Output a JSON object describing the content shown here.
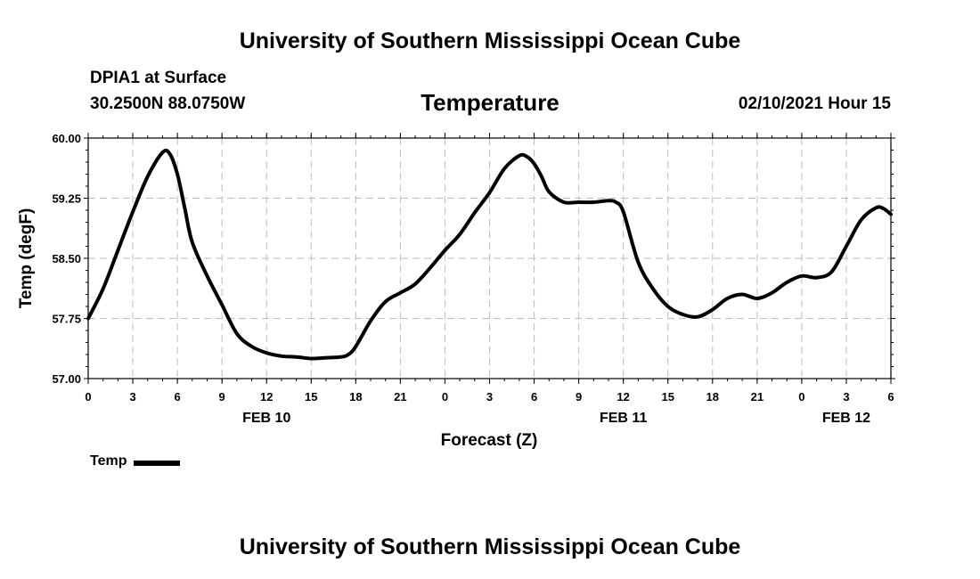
{
  "header": {
    "top_title": "University of Southern Mississippi Ocean Cube",
    "station": "DPIA1 at Surface",
    "coordinates": "30.2500N 88.0750W",
    "datetime": "02/10/2021 Hour 15"
  },
  "footer": {
    "bottom_title": "University of Southern Mississippi Ocean Cube"
  },
  "legend": {
    "label": "Temp",
    "color": "#000000"
  },
  "chart_data": {
    "type": "line",
    "title": "Temperature",
    "xlabel": "Forecast (Z)",
    "ylabel": "Temp (degF)",
    "ylim": [
      57.0,
      60.0
    ],
    "yticks": [
      "57.00",
      "57.75",
      "58.50",
      "59.25",
      "60.00"
    ],
    "xlim": [
      0,
      54
    ],
    "xtick_labels": [
      "0",
      "3",
      "6",
      "9",
      "12",
      "15",
      "18",
      "21",
      "0",
      "3",
      "6",
      "9",
      "12",
      "15",
      "18",
      "21",
      "0",
      "3",
      "6"
    ],
    "date_labels": [
      {
        "label": "FEB 10",
        "x": 12
      },
      {
        "label": "FEB 11",
        "x": 36
      },
      {
        "label": "FEB 12",
        "x": 51
      }
    ],
    "grid": true,
    "series": [
      {
        "name": "Temp",
        "color": "#000000",
        "x": [
          0,
          1,
          2,
          3,
          4,
          5,
          5.5,
          6,
          6.5,
          7,
          8,
          9,
          10,
          11,
          12,
          13,
          14,
          15,
          16,
          17,
          17.5,
          18,
          19,
          20,
          21,
          22,
          23,
          24,
          25,
          26,
          27,
          28,
          29,
          29.5,
          30,
          30.5,
          31,
          32,
          33,
          34,
          35,
          35.5,
          36,
          37,
          38,
          39,
          40,
          41,
          42,
          43,
          44,
          45,
          46,
          47,
          48,
          49,
          50,
          51,
          52,
          53,
          53.5,
          54
        ],
        "values": [
          57.75,
          58.12,
          58.6,
          59.08,
          59.52,
          59.82,
          59.8,
          59.55,
          59.12,
          58.7,
          58.28,
          57.92,
          57.56,
          57.4,
          57.32,
          57.28,
          57.27,
          57.25,
          57.26,
          57.27,
          57.3,
          57.4,
          57.72,
          57.96,
          58.07,
          58.18,
          58.38,
          58.6,
          58.8,
          59.07,
          59.32,
          59.62,
          59.78,
          59.77,
          59.68,
          59.52,
          59.33,
          59.2,
          59.2,
          59.2,
          59.22,
          59.2,
          59.08,
          58.45,
          58.12,
          57.9,
          57.8,
          57.77,
          57.86,
          58.0,
          58.05,
          58.0,
          58.07,
          58.2,
          58.28,
          58.26,
          58.33,
          58.65,
          58.98,
          59.13,
          59.12,
          59.05
        ]
      }
    ]
  }
}
